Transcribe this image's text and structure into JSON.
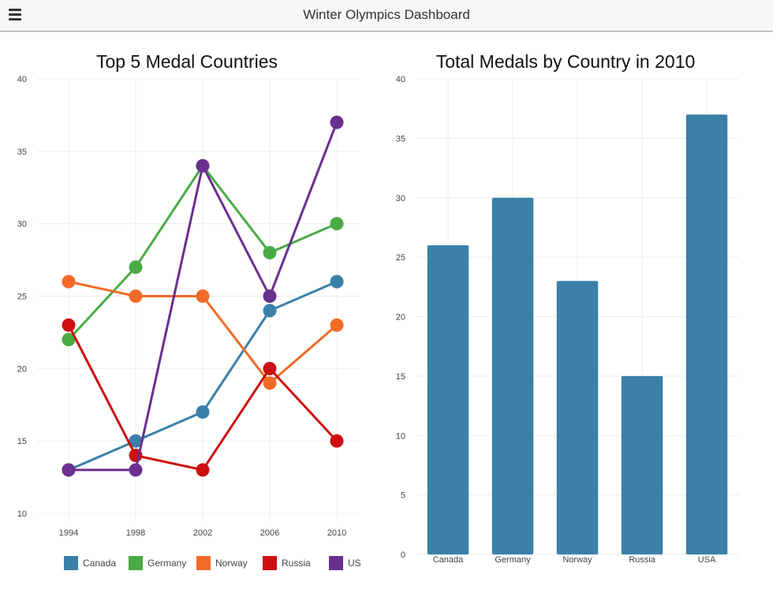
{
  "header": {
    "title": "Winter Olympics Dashboard",
    "menu_icon": "hamburger-menu-icon"
  },
  "chart_data": [
    {
      "type": "line",
      "title": "Top 5 Medal Countries",
      "xlabel": "",
      "ylabel": "",
      "x": [
        1994,
        1998,
        2002,
        2006,
        2010
      ],
      "x_tick_labels": [
        "1994",
        "1998",
        "2002",
        "2006",
        "2010"
      ],
      "ylim": [
        10,
        40
      ],
      "y_ticks": [
        10,
        15,
        20,
        25,
        30,
        35,
        40
      ],
      "grid": true,
      "legend": "bottom",
      "series": [
        {
          "name": "Canada",
          "color": "#3a80a9",
          "values": [
            13,
            15,
            17,
            24,
            26
          ]
        },
        {
          "name": "Germany",
          "color": "#4aab46",
          "values": [
            22,
            27,
            34,
            28,
            30
          ]
        },
        {
          "name": "Norway",
          "color": "#f26a28",
          "values": [
            26,
            25,
            25,
            19,
            23
          ]
        },
        {
          "name": "Russia",
          "color": "#cc1010",
          "values": [
            23,
            14,
            13,
            20,
            15
          ]
        },
        {
          "name": "US",
          "color": "#6a2f8f",
          "values": [
            13,
            13,
            34,
            25,
            37
          ]
        }
      ]
    },
    {
      "type": "bar",
      "title": "Total Medals by Country in 2010",
      "xlabel": "",
      "ylabel": "",
      "categories": [
        "Canada",
        "Germany",
        "Norway",
        "Russia",
        "USA"
      ],
      "values": [
        26,
        30,
        23,
        15,
        37
      ],
      "bar_color": "#3a80a9",
      "ylim": [
        0,
        40
      ],
      "y_ticks": [
        0,
        5,
        10,
        15,
        20,
        25,
        30,
        35,
        40
      ],
      "grid": true
    }
  ]
}
